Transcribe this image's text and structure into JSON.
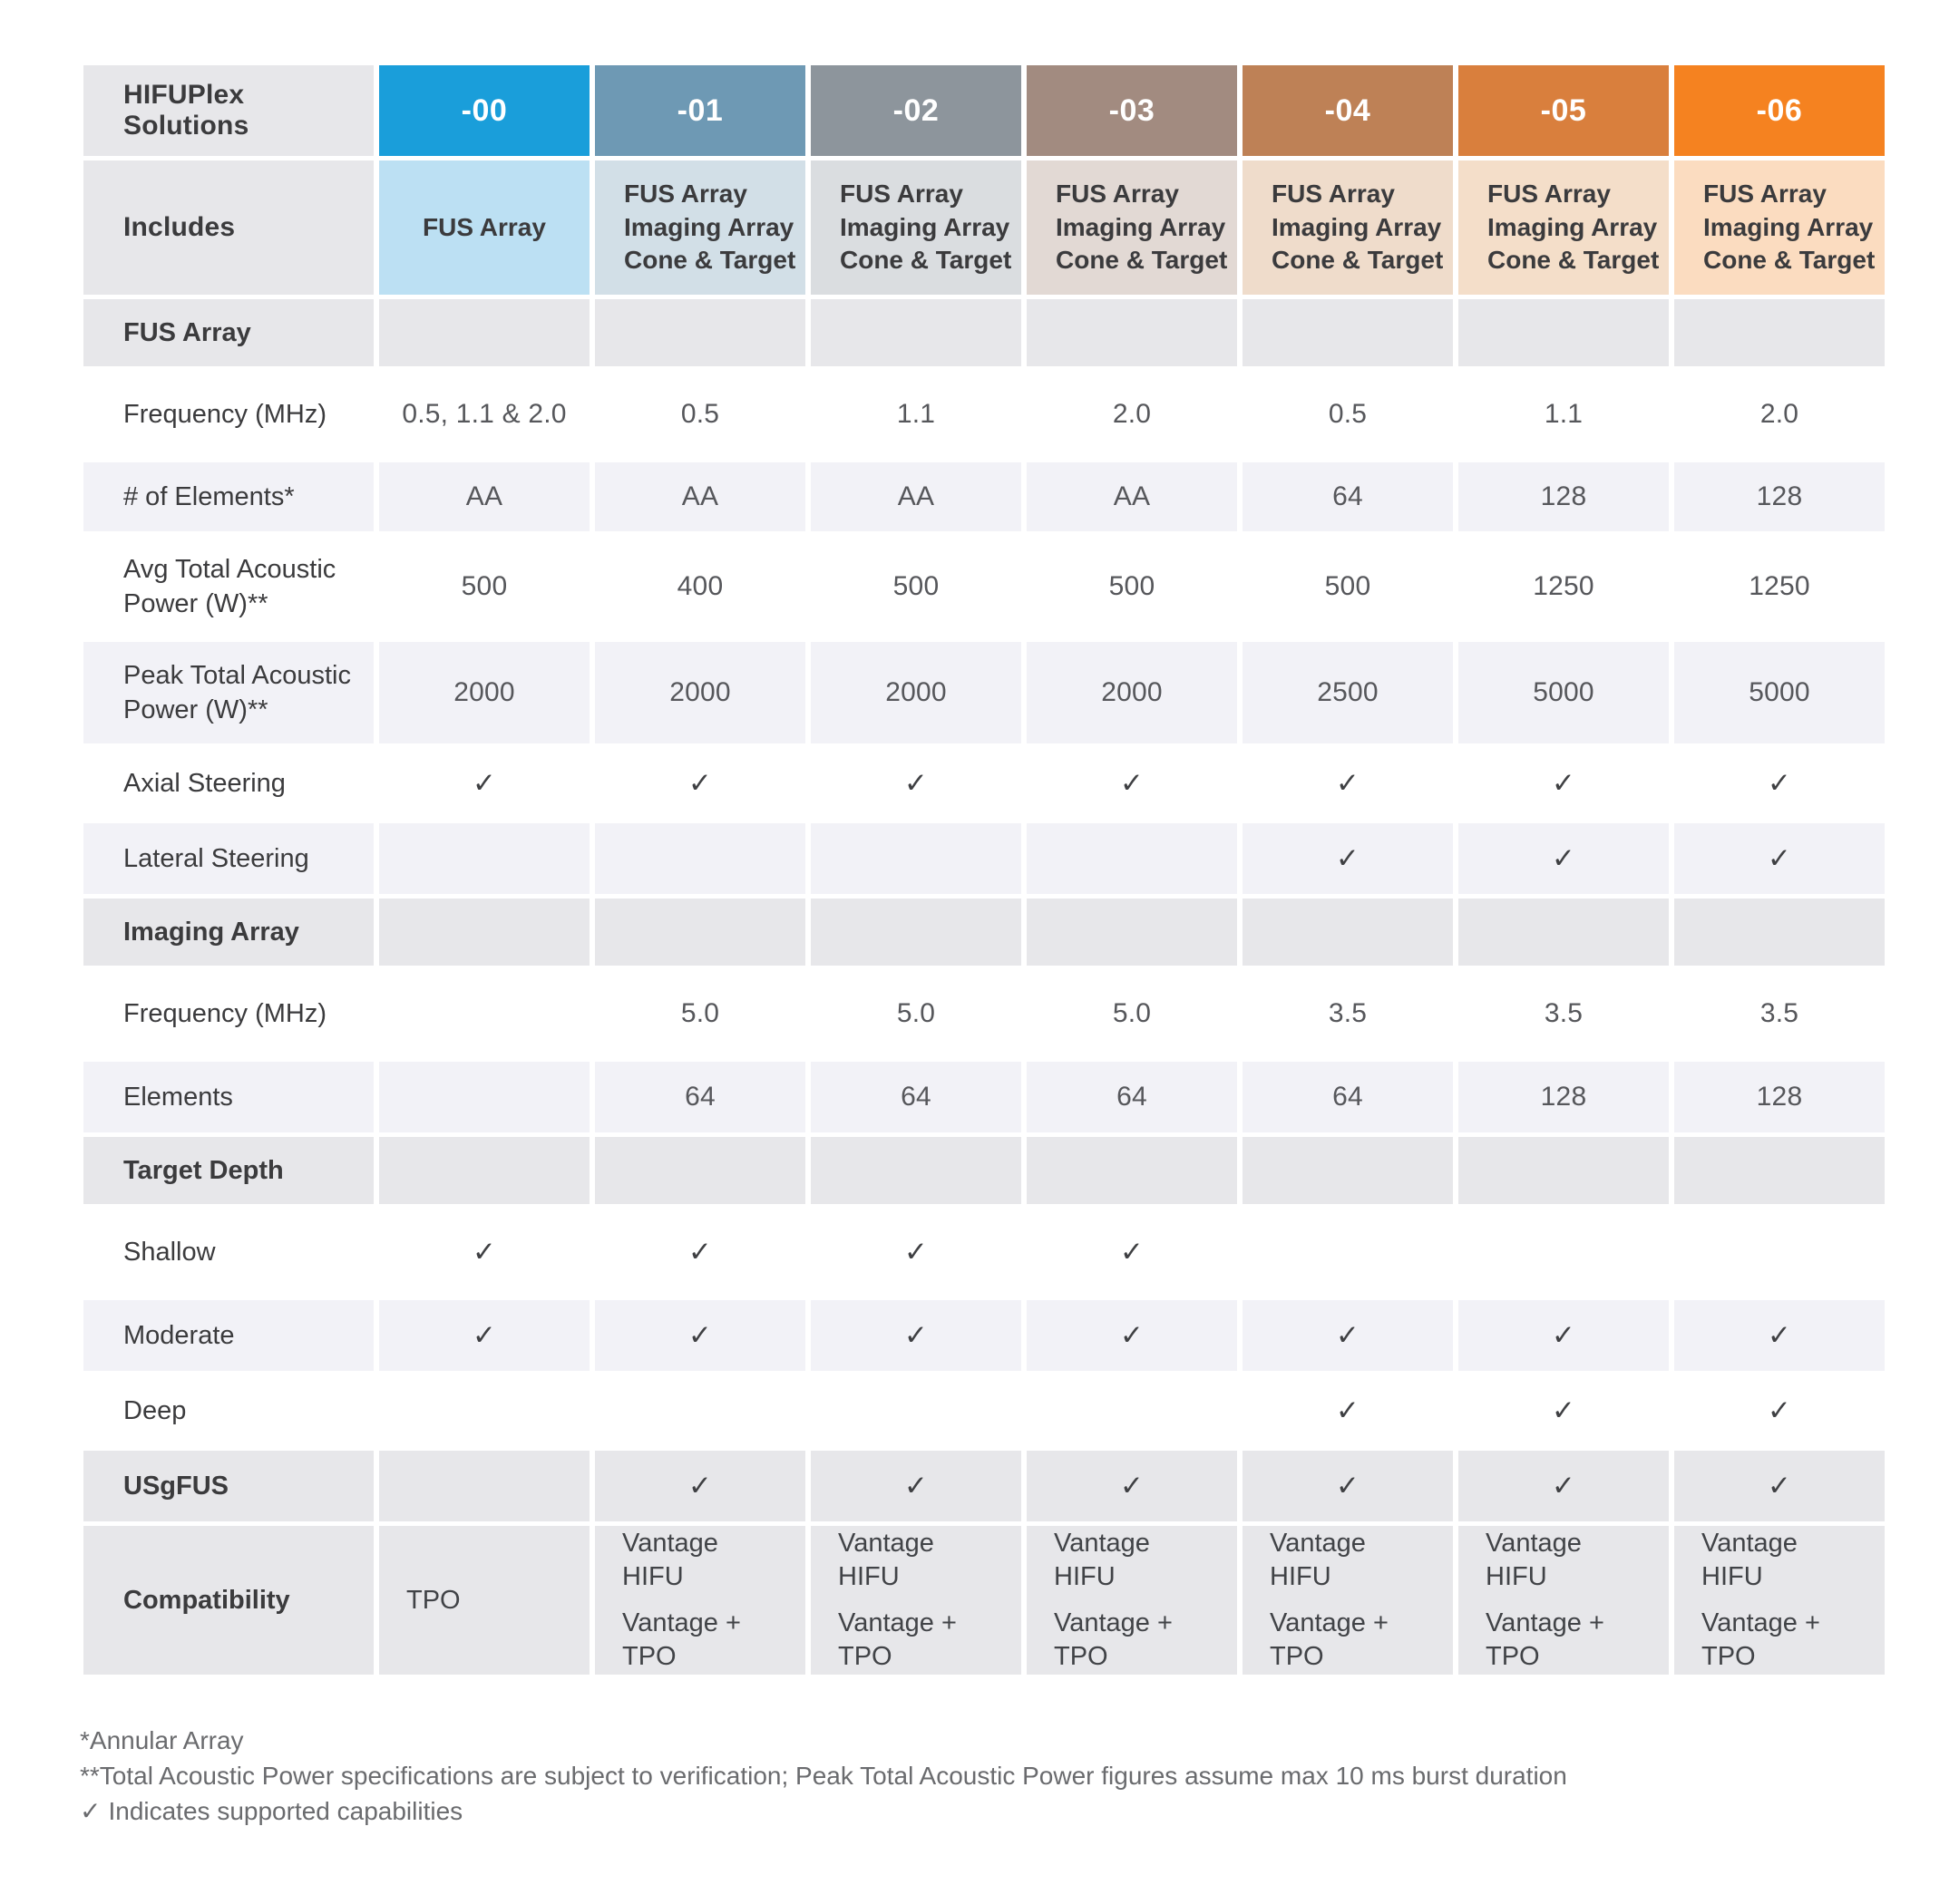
{
  "check_symbol": "✓",
  "chart_data": {
    "type": "table",
    "title": "HIFUPlex Solutions",
    "corner_header": "HIFUPlex Solutions",
    "includes_header": "Includes",
    "columns": [
      {
        "label": "-00",
        "header_color": "#1a9eda",
        "tint_color": "#bce0f3",
        "includes": [
          "FUS Array"
        ]
      },
      {
        "label": "-01",
        "header_color": "#6e99b4",
        "tint_color": "#d2dfe7",
        "includes": [
          "FUS Array",
          "Imaging Array",
          "Cone & Target"
        ]
      },
      {
        "label": "-02",
        "header_color": "#8d959c",
        "tint_color": "#dadde0",
        "includes": [
          "FUS Array",
          "Imaging Array",
          "Cone & Target"
        ]
      },
      {
        "label": "-03",
        "header_color": "#a28b80",
        "tint_color": "#e2d9d4",
        "includes": [
          "FUS Array",
          "Imaging Array",
          "Cone & Target"
        ]
      },
      {
        "label": "-04",
        "header_color": "#be8156",
        "tint_color": "#efdccb",
        "includes": [
          "FUS Array",
          "Imaging Array",
          "Cone & Target"
        ]
      },
      {
        "label": "-05",
        "header_color": "#d97f3d",
        "tint_color": "#f4dec9",
        "includes": [
          "FUS Array",
          "Imaging Array",
          "Cone & Target"
        ]
      },
      {
        "label": "-06",
        "header_color": "#f58220",
        "tint_color": "#fbdcc0",
        "includes": [
          "FUS Array",
          "Imaging Array",
          "Cone & Target"
        ]
      }
    ],
    "rows": [
      {
        "type": "section",
        "label": "FUS Array",
        "values": [
          "",
          "",
          "",
          "",
          "",
          "",
          ""
        ]
      },
      {
        "type": "data",
        "shade": "white",
        "label": "Frequency (MHz)",
        "values": [
          "0.5, 1.1 & 2.0",
          "0.5",
          "1.1",
          "2.0",
          "0.5",
          "1.1",
          "2.0"
        ]
      },
      {
        "type": "data",
        "shade": "gray",
        "label": "# of Elements*",
        "values": [
          "AA",
          "AA",
          "AA",
          "AA",
          "64",
          "128",
          "128"
        ]
      },
      {
        "type": "data",
        "shade": "white",
        "label": "Avg Total Acoustic Power (W)**",
        "values": [
          "500",
          "400",
          "500",
          "500",
          "500",
          "1250",
          "1250"
        ]
      },
      {
        "type": "data",
        "shade": "gray",
        "label": "Peak Total Acoustic Power (W)**",
        "values": [
          "2000",
          "2000",
          "2000",
          "2000",
          "2500",
          "5000",
          "5000"
        ]
      },
      {
        "type": "data",
        "shade": "white",
        "label": "Axial Steering",
        "values": [
          "✓",
          "✓",
          "✓",
          "✓",
          "✓",
          "✓",
          "✓"
        ]
      },
      {
        "type": "data",
        "shade": "gray",
        "label": "Lateral Steering",
        "values": [
          "",
          "",
          "",
          "",
          "✓",
          "✓",
          "✓"
        ]
      },
      {
        "type": "section",
        "label": "Imaging Array",
        "values": [
          "",
          "",
          "",
          "",
          "",
          "",
          ""
        ]
      },
      {
        "type": "data",
        "shade": "white",
        "label": "Frequency (MHz)",
        "values": [
          "",
          "5.0",
          "5.0",
          "5.0",
          "3.5",
          "3.5",
          "3.5"
        ]
      },
      {
        "type": "data",
        "shade": "gray",
        "label": "Elements",
        "values": [
          "",
          "64",
          "64",
          "64",
          "64",
          "128",
          "128"
        ]
      },
      {
        "type": "section",
        "label": "Target Depth",
        "values": [
          "",
          "",
          "",
          "",
          "",
          "",
          ""
        ]
      },
      {
        "type": "data",
        "shade": "white",
        "label": "Shallow",
        "values": [
          "✓",
          "✓",
          "✓",
          "✓",
          "",
          "",
          ""
        ]
      },
      {
        "type": "data",
        "shade": "gray",
        "label": "Moderate",
        "values": [
          "✓",
          "✓",
          "✓",
          "✓",
          "✓",
          "✓",
          "✓"
        ]
      },
      {
        "type": "data",
        "shade": "white",
        "label": "Deep",
        "values": [
          "",
          "",
          "",
          "",
          "✓",
          "✓",
          "✓"
        ]
      },
      {
        "type": "section",
        "label": "USgFUS",
        "values": [
          "",
          "✓",
          "✓",
          "✓",
          "✓",
          "✓",
          "✓"
        ]
      },
      {
        "type": "section",
        "label": "Compatibility",
        "values": [
          [
            [
              "TPO"
            ]
          ],
          [
            [
              "Vantage HIFU"
            ],
            [
              "Vantage +",
              "TPO"
            ]
          ],
          [
            [
              "Vantage HIFU"
            ],
            [
              "Vantage +",
              "TPO"
            ]
          ],
          [
            [
              "Vantage HIFU"
            ],
            [
              "Vantage +",
              "TPO"
            ]
          ],
          [
            [
              "Vantage HIFU"
            ],
            [
              "Vantage +",
              "TPO"
            ]
          ],
          [
            [
              "Vantage HIFU"
            ],
            [
              "Vantage +",
              "TPO"
            ]
          ],
          [
            [
              "Vantage HIFU"
            ],
            [
              "Vantage +",
              "TPO"
            ]
          ]
        ]
      }
    ]
  },
  "footnotes": {
    "note1": "*Annular Array",
    "note2": "**Total Acoustic Power specifications are subject to verification; Peak Total Acoustic Power figures assume max 10 ms burst duration",
    "note3": "Indicates supported capabilities"
  }
}
